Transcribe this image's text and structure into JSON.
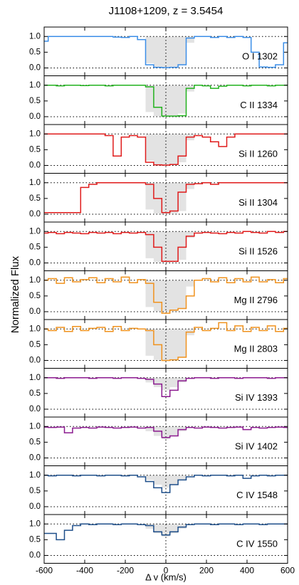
{
  "chart_data": {
    "type": "step",
    "title": "J1108+1209, z = 3.5454",
    "xlabel": "Δ v (km/s)",
    "ylabel": "Normalized Flux",
    "xlim": [
      -600,
      600
    ],
    "xticks": [
      -600,
      -400,
      -200,
      0,
      200,
      400,
      600
    ],
    "x": [
      -600,
      -560,
      -520,
      -480,
      -440,
      -400,
      -360,
      -320,
      -280,
      -240,
      -200,
      -160,
      -120,
      -80,
      -40,
      0,
      40,
      80,
      120,
      160,
      200,
      240,
      280,
      320,
      360,
      400,
      440,
      480,
      520,
      560,
      600
    ],
    "ylim": [
      -0.25,
      1.3
    ],
    "yticks": [
      {
        "value": 0,
        "label": "0.0"
      },
      {
        "value": 0.5,
        "label": "0.5"
      },
      {
        "value": 1,
        "label": "1.0"
      }
    ],
    "shade_color": "#e3e3e3",
    "panels": [
      {
        "label": "O I 1302",
        "color": "#3b8ee8",
        "values": [
          0.85,
          1,
          1,
          1,
          1,
          1,
          1,
          1,
          1,
          0.98,
          0.97,
          1,
          0.9,
          0.1,
          0.02,
          0.01,
          0.02,
          0.1,
          0.95,
          1,
          1,
          0.97,
          1,
          0.97,
          1,
          0.97,
          0.5,
          0.03,
          0.02,
          0.1,
          0.8
        ],
        "shade": [
          1,
          1,
          1,
          1,
          1,
          1,
          1,
          1,
          1,
          1,
          1,
          1,
          1,
          0.15,
          0.02,
          0.01,
          0.02,
          0.1,
          0.8,
          1,
          1,
          1,
          1,
          1,
          1,
          1,
          1,
          1,
          1,
          1,
          1
        ]
      },
      {
        "label": "C II 1334",
        "color": "#22b21e",
        "values": [
          1,
          1,
          0.98,
          1,
          1,
          0.99,
          1,
          1,
          0.98,
          1,
          1,
          1,
          1,
          0.95,
          0.3,
          0.02,
          0.02,
          0.03,
          0.9,
          1,
          0.98,
          0.9,
          0.97,
          1,
          1,
          0.98,
          1,
          1,
          0.98,
          1,
          1
        ],
        "shade": [
          1,
          1,
          1,
          1,
          1,
          1,
          1,
          1,
          1,
          1,
          1,
          1,
          1,
          0.15,
          0.02,
          0.01,
          0.02,
          0.1,
          0.8,
          1,
          1,
          1,
          1,
          1,
          1,
          1,
          1,
          1,
          1,
          1,
          1
        ]
      },
      {
        "label": "Si II 1260",
        "color": "#e01b1b",
        "values": [
          1,
          1,
          1,
          1,
          1,
          1,
          1,
          1,
          0.95,
          0.3,
          0.9,
          0.95,
          0.9,
          0.1,
          0.02,
          0.01,
          0.03,
          0.3,
          0.9,
          0.95,
          0.9,
          0.75,
          0.6,
          0.9,
          1,
          1,
          1,
          1,
          1,
          1,
          1
        ],
        "shade": [
          1,
          1,
          1,
          1,
          1,
          1,
          1,
          1,
          1,
          1,
          1,
          1,
          1,
          0.15,
          0.02,
          0.01,
          0.02,
          0.1,
          0.8,
          1,
          1,
          1,
          1,
          1,
          1,
          1,
          1,
          1,
          1,
          1,
          1
        ]
      },
      {
        "label": "Si II 1304",
        "color": "#e01b1b",
        "values": [
          0.05,
          0.05,
          0.05,
          0.05,
          0.05,
          0.85,
          0.95,
          1,
          1,
          1,
          1,
          1,
          1,
          0.95,
          0.5,
          0.05,
          0.1,
          0.7,
          0.95,
          0.97,
          1,
          0.95,
          1,
          1,
          1,
          1,
          1,
          1,
          1,
          1,
          1
        ],
        "shade": [
          1,
          1,
          1,
          1,
          1,
          1,
          1,
          1,
          1,
          1,
          1,
          1,
          1,
          0.15,
          0.02,
          0.01,
          0.02,
          0.1,
          0.8,
          1,
          1,
          1,
          1,
          1,
          1,
          1,
          1,
          1,
          1,
          1,
          1
        ]
      },
      {
        "label": "Si II 1526",
        "color": "#e01b1b",
        "values": [
          0.95,
          0.97,
          0.93,
          0.97,
          0.95,
          0.93,
          0.97,
          0.95,
          0.97,
          0.93,
          0.97,
          0.95,
          0.97,
          0.9,
          0.5,
          0.05,
          0.05,
          0.5,
          0.85,
          0.95,
          0.97,
          0.95,
          0.93,
          0.97,
          0.95,
          1,
          0.97,
          0.95,
          1,
          0.97,
          1
        ],
        "shade": [
          1,
          1,
          1,
          1,
          1,
          1,
          1,
          1,
          1,
          1,
          1,
          1,
          1,
          0.15,
          0.02,
          0.01,
          0.02,
          0.1,
          0.8,
          1,
          1,
          1,
          1,
          1,
          1,
          1,
          1,
          1,
          1,
          1,
          1
        ]
      },
      {
        "label": "Mg II 2796",
        "color": "#f0921e",
        "values": [
          1,
          1.05,
          0.9,
          1.08,
          0.95,
          1.02,
          1.08,
          0.92,
          1.05,
          0.95,
          1.1,
          0.92,
          1.02,
          0.9,
          0.3,
          -0.05,
          0.05,
          0.1,
          0.5,
          1,
          1.05,
          0.95,
          1.08,
          0.92,
          1.05,
          0.95,
          1.1,
          0.95,
          1.02,
          0.92,
          1.05
        ],
        "shade": [
          1,
          1,
          1,
          1,
          1,
          1,
          1,
          1,
          1,
          1,
          1,
          1,
          1,
          0.15,
          0.02,
          0.01,
          0.02,
          0.1,
          0.8,
          1,
          1,
          1,
          1,
          1,
          1,
          1,
          1,
          1,
          1,
          1,
          1
        ]
      },
      {
        "label": "Mg II 2803",
        "color": "#f0921e",
        "values": [
          1,
          0.95,
          1.05,
          0.92,
          1.08,
          0.95,
          1.02,
          1.05,
          0.92,
          1.08,
          0.95,
          1.02,
          1,
          0.95,
          0.5,
          0,
          0.02,
          0.1,
          0.9,
          1.05,
          0.95,
          1.02,
          1.2,
          0.95,
          1.1,
          0.92,
          1.05,
          0.95,
          1.1,
          0.92,
          1.02
        ],
        "shade": [
          1,
          1,
          1,
          1,
          1,
          1,
          1,
          1,
          1,
          1,
          1,
          1,
          1,
          0.15,
          0.02,
          0.01,
          0.02,
          0.1,
          0.8,
          1,
          1,
          1,
          1,
          1,
          1,
          1,
          1,
          1,
          1,
          1,
          1
        ]
      },
      {
        "label": "Si IV 1393",
        "color": "#8b1a8f",
        "values": [
          1,
          1,
          0.98,
          1,
          1,
          1,
          0.98,
          1,
          1,
          0.98,
          1,
          1,
          0.98,
          0.95,
          0.8,
          0.4,
          0.6,
          0.9,
          0.98,
          1,
          1,
          0.98,
          1,
          1,
          0.98,
          1,
          1,
          1,
          0.98,
          1,
          1
        ],
        "shade": [
          1,
          1,
          1,
          1,
          1,
          1,
          1,
          1,
          1,
          1,
          1,
          1,
          1,
          0.85,
          0.7,
          0.6,
          0.7,
          0.85,
          1,
          1,
          1,
          1,
          1,
          1,
          1,
          1,
          1,
          1,
          1,
          1,
          1
        ]
      },
      {
        "label": "Si IV 1402",
        "color": "#8b1a8f",
        "values": [
          0.98,
          0.97,
          0.98,
          0.8,
          0.95,
          0.97,
          0.95,
          0.98,
          0.97,
          0.95,
          0.97,
          0.98,
          0.95,
          0.97,
          0.85,
          0.65,
          0.7,
          0.9,
          0.97,
          0.95,
          0.98,
          0.97,
          0.95,
          0.97,
          0.98,
          0.9,
          0.97,
          0.95,
          0.97,
          0.98,
          0.97
        ],
        "shade": [
          1,
          1,
          1,
          1,
          1,
          1,
          1,
          1,
          1,
          1,
          1,
          1,
          1,
          0.85,
          0.7,
          0.6,
          0.7,
          0.85,
          1,
          1,
          1,
          1,
          1,
          1,
          1,
          1,
          1,
          1,
          1,
          1,
          1
        ]
      },
      {
        "label": "C IV 1548",
        "color": "#1f4f8a",
        "values": [
          1,
          0.98,
          1,
          1,
          0.98,
          1,
          1,
          0.98,
          1,
          1,
          0.98,
          1,
          0.95,
          0.8,
          0.6,
          0.45,
          0.7,
          0.85,
          0.95,
          1,
          0.98,
          1,
          1,
          0.98,
          1,
          0.9,
          0.98,
          1,
          0.98,
          1,
          1
        ],
        "shade": [
          1,
          1,
          1,
          1,
          1,
          1,
          1,
          1,
          1,
          1,
          1,
          1,
          1,
          0.85,
          0.7,
          0.6,
          0.7,
          0.85,
          1,
          1,
          1,
          1,
          1,
          1,
          1,
          1,
          1,
          1,
          1,
          1,
          1
        ]
      },
      {
        "label": "C IV 1550",
        "color": "#1f4f8a",
        "values": [
          0.7,
          0.7,
          0.5,
          0.8,
          0.95,
          1,
          0.98,
          1,
          1,
          0.98,
          1,
          1,
          0.98,
          0.95,
          0.75,
          0.65,
          0.75,
          0.9,
          0.98,
          1,
          1,
          0.98,
          1,
          1,
          0.98,
          1,
          1,
          0.98,
          1,
          1,
          1
        ],
        "shade": [
          1,
          1,
          1,
          1,
          1,
          1,
          1,
          1,
          1,
          1,
          1,
          1,
          1,
          0.85,
          0.7,
          0.6,
          0.7,
          0.85,
          1,
          1,
          1,
          1,
          1,
          1,
          1,
          1,
          1,
          1,
          1,
          1,
          1
        ]
      }
    ]
  }
}
